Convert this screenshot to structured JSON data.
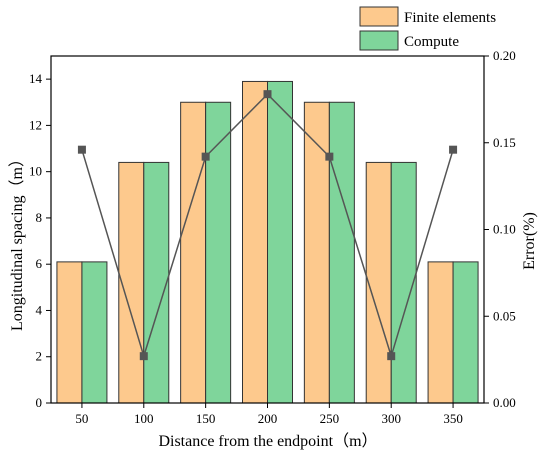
{
  "chart_data": {
    "type": "bar",
    "categories": [
      "50",
      "100",
      "150",
      "200",
      "250",
      "300",
      "350"
    ],
    "series": [
      {
        "name": "Finite elements",
        "values": [
          6.1,
          10.4,
          13.0,
          13.9,
          13.0,
          10.4,
          6.1
        ],
        "color": "#FDC98D",
        "axis": "left"
      },
      {
        "name": "Compute",
        "values": [
          6.1,
          10.4,
          13.0,
          13.9,
          13.0,
          10.4,
          6.1
        ],
        "color": "#7FD59B",
        "axis": "left"
      }
    ],
    "line_series": {
      "values": [
        0.146,
        0.027,
        0.142,
        0.178,
        0.142,
        0.027,
        0.146
      ],
      "color": "#555555",
      "marker": "square",
      "axis": "right"
    },
    "xlabel": "Distance from the endpoint（m）",
    "ylabel": "Longitudinal spacing（m）",
    "y2label": "Error(%)",
    "ylim": [
      0,
      15
    ],
    "y2lim": [
      0,
      0.2
    ],
    "yticks": [
      "0",
      "2",
      "4",
      "6",
      "8",
      "10",
      "12",
      "14"
    ],
    "y2ticks": [
      "0.00",
      "0.05",
      "0.10",
      "0.15",
      "0.20"
    ],
    "grid": false,
    "legend_position": "top-right"
  }
}
